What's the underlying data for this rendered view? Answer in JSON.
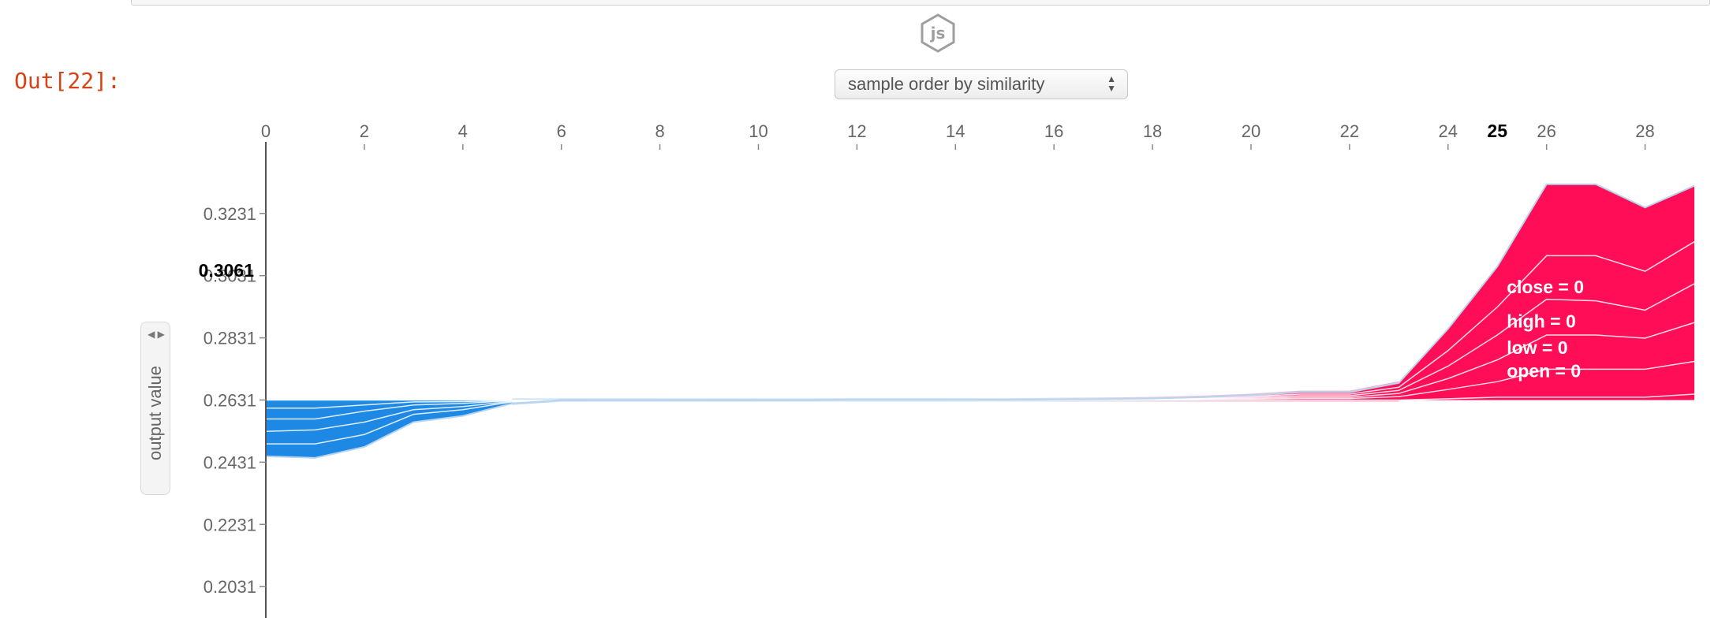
{
  "notebook": {
    "out_prompt": "Out[22]:",
    "js_badge": "js"
  },
  "controls": {
    "order_select_value": "sample order by similarity",
    "y_select_value": "output value"
  },
  "chart_data": {
    "type": "area",
    "title": "",
    "xlabel": "",
    "ylabel": "output value",
    "x_ticks": [
      0,
      2,
      4,
      6,
      8,
      10,
      12,
      14,
      16,
      18,
      20,
      22,
      24,
      26,
      28
    ],
    "highlight_x": 25,
    "y_ticks": [
      0.3231,
      0.3031,
      0.2831,
      0.2631,
      0.2431,
      0.2231,
      0.2031
    ],
    "highlight_y": 0.3061,
    "xlim": [
      0,
      29
    ],
    "ylim": [
      0.193,
      0.338
    ],
    "base_value": 0.2631,
    "x": [
      0,
      1,
      2,
      3,
      4,
      5,
      6,
      7,
      8,
      9,
      10,
      11,
      12,
      13,
      14,
      15,
      16,
      17,
      18,
      19,
      20,
      21,
      22,
      23,
      24,
      25,
      26,
      27,
      28,
      29
    ],
    "output_value": [
      0.245,
      0.2445,
      0.248,
      0.256,
      0.258,
      0.262,
      0.2631,
      0.2631,
      0.2631,
      0.2631,
      0.2631,
      0.2631,
      0.2632,
      0.2632,
      0.2632,
      0.2632,
      0.2633,
      0.2634,
      0.2636,
      0.264,
      0.2646,
      0.2656,
      0.2656,
      0.2686,
      0.286,
      0.306,
      0.3325,
      0.3325,
      0.325,
      0.332
    ],
    "series": [
      {
        "name": "close = 0",
        "values": [
          0.245,
          0.2445,
          0.248,
          0.256,
          0.258,
          0.262,
          0.2631,
          0.2631,
          0.2631,
          0.2631,
          0.2631,
          0.2631,
          0.2632,
          0.2632,
          0.2632,
          0.2632,
          0.2633,
          0.2634,
          0.2636,
          0.264,
          0.2646,
          0.2656,
          0.2656,
          0.2686,
          0.286,
          0.306,
          0.3325,
          0.3325,
          0.325,
          0.332
        ]
      },
      {
        "name": "high = 0",
        "values": [
          0.249,
          0.249,
          0.252,
          0.2585,
          0.26,
          0.2625,
          0.2631,
          0.2631,
          0.2631,
          0.2631,
          0.2631,
          0.2631,
          0.2632,
          0.2632,
          0.2632,
          0.2632,
          0.2633,
          0.2634,
          0.2635,
          0.2638,
          0.2643,
          0.265,
          0.265,
          0.2672,
          0.279,
          0.293,
          0.3095,
          0.3095,
          0.3045,
          0.314
        ]
      },
      {
        "name": "low = 0",
        "values": [
          0.253,
          0.2535,
          0.256,
          0.26,
          0.261,
          0.2627,
          0.2631,
          0.2631,
          0.2631,
          0.2631,
          0.2631,
          0.2631,
          0.2631,
          0.2632,
          0.2632,
          0.2632,
          0.2633,
          0.2633,
          0.2634,
          0.2636,
          0.264,
          0.2645,
          0.2645,
          0.2662,
          0.274,
          0.284,
          0.2955,
          0.295,
          0.292,
          0.3005
        ]
      },
      {
        "name": "open = 0",
        "values": [
          0.257,
          0.257,
          0.2595,
          0.2615,
          0.262,
          0.2629,
          0.2631,
          0.2631,
          0.2631,
          0.2631,
          0.2631,
          0.2631,
          0.2631,
          0.2631,
          0.2632,
          0.2632,
          0.2632,
          0.2633,
          0.2633,
          0.2635,
          0.2637,
          0.264,
          0.264,
          0.2652,
          0.27,
          0.276,
          0.284,
          0.284,
          0.283,
          0.288
        ]
      },
      {
        "name": "",
        "values": [
          0.2605,
          0.2605,
          0.2615,
          0.2625,
          0.2626,
          0.263,
          0.2631,
          0.2631,
          0.2631,
          0.2631,
          0.2631,
          0.2631,
          0.2631,
          0.2631,
          0.2631,
          0.2632,
          0.2632,
          0.2632,
          0.2632,
          0.2633,
          0.2634,
          0.2636,
          0.2636,
          0.2642,
          0.2665,
          0.269,
          0.273,
          0.273,
          0.273,
          0.2755
        ]
      },
      {
        "name": "",
        "values": [
          0.2631,
          0.2631,
          0.2631,
          0.2631,
          0.2631,
          0.2631,
          0.2631,
          0.2631,
          0.2631,
          0.2631,
          0.2631,
          0.2631,
          0.2631,
          0.2631,
          0.2631,
          0.2631,
          0.2631,
          0.2631,
          0.2631,
          0.2631,
          0.2631,
          0.2631,
          0.2631,
          0.2631,
          0.2635,
          0.264,
          0.264,
          0.264,
          0.264,
          0.265
        ]
      }
    ],
    "colors": {
      "positive": "#ff0d57",
      "negative": "#1e88e5",
      "separator": "#ffffff",
      "axis": "#555555"
    },
    "legend": "inline-right"
  }
}
